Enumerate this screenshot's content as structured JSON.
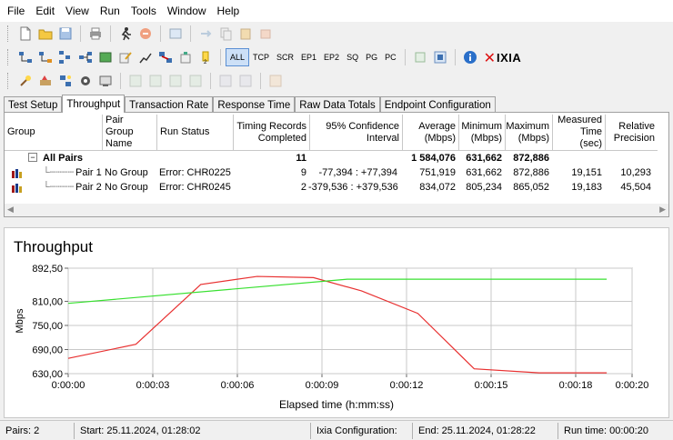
{
  "menu": [
    "File",
    "Edit",
    "View",
    "Run",
    "Tools",
    "Window",
    "Help"
  ],
  "toolbar2": {
    "protocol_filters": [
      "ALL",
      "TCP",
      "SCR",
      "EP1",
      "EP2",
      "SQ",
      "PG",
      "PC"
    ],
    "active_filter": "ALL",
    "logo": "IXIA"
  },
  "tabs": [
    "Test Setup",
    "Throughput",
    "Transaction Rate",
    "Response Time",
    "Raw Data Totals",
    "Endpoint Configuration"
  ],
  "active_tab": "Throughput",
  "grid": {
    "headers": {
      "group": "Group",
      "pair_group": [
        "Pair Group",
        "Name"
      ],
      "run_status": "Run Status",
      "timing": [
        "Timing Records",
        "Completed"
      ],
      "confidence": [
        "95% Confidence",
        "Interval"
      ],
      "average": [
        "Average",
        "(Mbps)"
      ],
      "minimum": [
        "Minimum",
        "(Mbps)"
      ],
      "maximum": [
        "Maximum",
        "(Mbps)"
      ],
      "measured": [
        "Measured",
        "Time (sec)"
      ],
      "relative": [
        "Relative",
        "Precision"
      ]
    },
    "summary": {
      "expander": "−",
      "label": "All Pairs",
      "timing": "11",
      "average": "1 584,076",
      "minimum": "631,662",
      "maximum": "872,886"
    },
    "rows": [
      {
        "pair": "Pair 1",
        "group": "No Group",
        "status": "Error:  CHR0225",
        "timing": "9",
        "confidence": "-77,394 : +77,394",
        "average": "751,919",
        "minimum": "631,662",
        "maximum": "872,886",
        "measured": "19,151",
        "relative": "10,293"
      },
      {
        "pair": "Pair 2",
        "group": "No Group",
        "status": "Error:  CHR0245",
        "timing": "2",
        "confidence": "-379,536 : +379,536",
        "average": "834,072",
        "minimum": "805,234",
        "maximum": "865,052",
        "measured": "19,183",
        "relative": "45,504"
      }
    ]
  },
  "chart_title": "Throughput",
  "chart_data": {
    "type": "line",
    "title": "Throughput",
    "xlabel": "Elapsed time (h:mm:ss)",
    "ylabel": "Mbps",
    "x_ticks": [
      "0:00:00",
      "0:00:03",
      "0:00:06",
      "0:00:09",
      "0:00:12",
      "0:00:15",
      "0:00:18",
      "0:00:20"
    ],
    "y_ticks": [
      "630,00",
      "690,00",
      "750,00",
      "810,00",
      "892,50"
    ],
    "xlim_seconds": [
      0,
      20
    ],
    "ylim": [
      630,
      892.5
    ],
    "grid": true,
    "series": [
      {
        "color": "#e83030",
        "x": [
          0,
          2.4,
          4.7,
          6.7,
          8.7,
          10.4,
          12.4,
          14.4,
          16.7,
          19.1
        ],
        "y": [
          668,
          703,
          852,
          872,
          869,
          836,
          780,
          642,
          632,
          632
        ]
      },
      {
        "color": "#38e030",
        "x": [
          0,
          9.9,
          19.1
        ],
        "y": [
          805,
          865,
          865
        ]
      }
    ]
  },
  "status": {
    "pairs": "Pairs: 2",
    "start": "Start: 25.11.2024, 01:28:02",
    "ixia_config": "Ixia Configuration:",
    "end": "End: 25.11.2024, 01:28:22",
    "run_time": "Run time: 00:00:20"
  }
}
